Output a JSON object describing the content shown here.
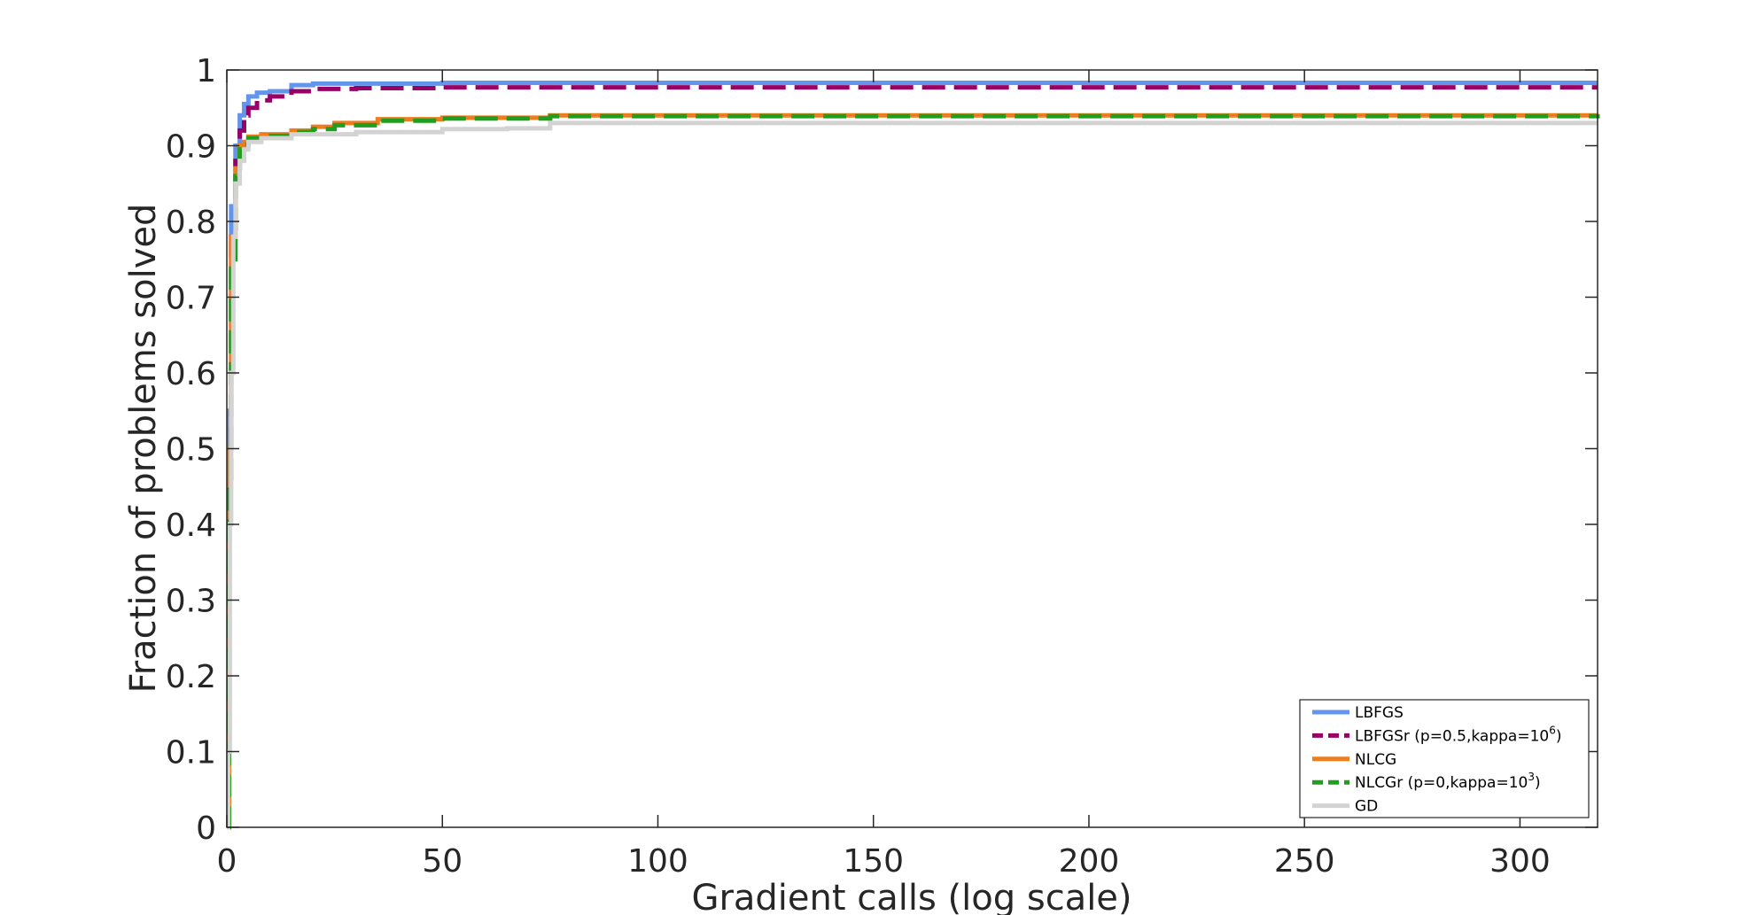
{
  "chart_data": {
    "type": "line",
    "xlabel": "Gradient calls (log scale)",
    "ylabel": "Fraction of problems solved",
    "xlim": [
      0,
      318
    ],
    "ylim": [
      0,
      1
    ],
    "xticks": [
      0,
      50,
      100,
      150,
      200,
      250,
      300
    ],
    "yticks": [
      0,
      0.1,
      0.2,
      0.3,
      0.4,
      0.5,
      0.6,
      0.7,
      0.8,
      0.9,
      1
    ],
    "xtick_labels": [
      "0",
      "50",
      "100",
      "150",
      "200",
      "250",
      "300"
    ],
    "ytick_labels": [
      "0",
      "0.1",
      "0.2",
      "0.3",
      "0.4",
      "0.5",
      "0.6",
      "0.7",
      "0.8",
      "0.9",
      "1"
    ],
    "grid": false,
    "legend_position": "bottom-right",
    "series": [
      {
        "name": "LBFGS",
        "legend_parts": [
          "LBFGS"
        ],
        "color": "#6495ED",
        "dash": "solid",
        "x": [
          0,
          0.5,
          1,
          2,
          3,
          4,
          5,
          7,
          10,
          15,
          20,
          30,
          50,
          318
        ],
        "y": [
          0,
          0.55,
          0.82,
          0.9,
          0.94,
          0.955,
          0.965,
          0.97,
          0.972,
          0.98,
          0.982,
          0.982,
          0.983,
          0.983
        ]
      },
      {
        "name": "LBFGSr (p=0.5,kappa=10^6)",
        "legend_parts": [
          "LBFGSr (p=0.5,kappa=10",
          "6",
          ")"
        ],
        "color": "#990066",
        "dash": "dash",
        "x": [
          0,
          0.5,
          1,
          2,
          3,
          4,
          5,
          7,
          10,
          15,
          20,
          30,
          50,
          318
        ],
        "y": [
          0,
          0.5,
          0.78,
          0.88,
          0.92,
          0.94,
          0.95,
          0.96,
          0.965,
          0.972,
          0.975,
          0.976,
          0.977,
          0.977
        ]
      },
      {
        "name": "NLCG",
        "legend_parts": [
          "NLCG"
        ],
        "color": "#ED7D1F",
        "dash": "solid",
        "x": [
          0,
          0.5,
          1,
          2,
          3,
          4,
          5,
          8,
          15,
          20,
          25,
          35,
          50,
          75,
          318
        ],
        "y": [
          0,
          0.5,
          0.78,
          0.87,
          0.9,
          0.905,
          0.912,
          0.915,
          0.92,
          0.925,
          0.93,
          0.935,
          0.937,
          0.94,
          0.942
        ]
      },
      {
        "name": "NLCGr (p=0,kappa=10^3)",
        "legend_parts": [
          "NLCGr (p=0,kappa=10",
          "3",
          ")"
        ],
        "color": "#1F9E1F",
        "dash": "dash",
        "x": [
          0,
          0.5,
          1,
          2,
          3,
          4,
          5,
          8,
          15,
          20,
          25,
          35,
          50,
          75,
          318
        ],
        "y": [
          0,
          0.45,
          0.75,
          0.86,
          0.895,
          0.902,
          0.91,
          0.913,
          0.918,
          0.922,
          0.927,
          0.933,
          0.936,
          0.939,
          0.941
        ]
      },
      {
        "name": "GD",
        "legend_parts": [
          "GD"
        ],
        "color": "#D3D3D3",
        "dash": "solid",
        "x": [
          0,
          0.3,
          0.7,
          1,
          1.5,
          2,
          3,
          4,
          5,
          8,
          15,
          30,
          50,
          65,
          75,
          318
        ],
        "y": [
          0,
          0.1,
          0.4,
          0.6,
          0.78,
          0.85,
          0.88,
          0.895,
          0.905,
          0.91,
          0.915,
          0.918,
          0.922,
          0.923,
          0.93,
          0.93
        ]
      }
    ]
  }
}
